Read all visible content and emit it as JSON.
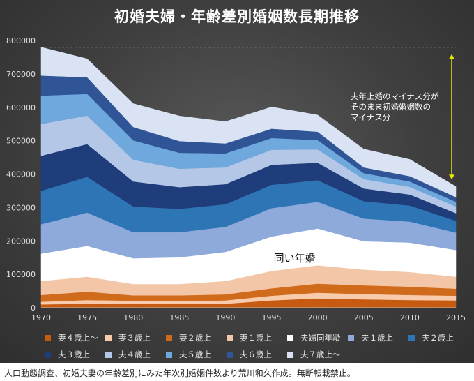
{
  "chart_data": {
    "type": "area",
    "title": "初婚夫婦・年齢差別婚姻数長期推移",
    "x": [
      1970,
      1975,
      1980,
      1985,
      1990,
      1995,
      2000,
      2005,
      2010,
      2015
    ],
    "ylim": [
      0,
      800000
    ],
    "yticks": [
      "0",
      "100000",
      "200000",
      "300000",
      "400000",
      "500000",
      "600000",
      "700000",
      "800000"
    ],
    "stacked": true,
    "grid": false,
    "legend_position": "bottom",
    "series": [
      {
        "name": "妻４歳上～",
        "color": "#c65a11",
        "values": [
          10000,
          12000,
          12000,
          11000,
          12000,
          22000,
          28000,
          25000,
          23000,
          22000
        ]
      },
      {
        "name": "妻３歳上",
        "color": "#f8cbad",
        "values": [
          8000,
          11000,
          9000,
          9000,
          10000,
          14000,
          17000,
          16000,
          15000,
          14000
        ]
      },
      {
        "name": "妻２歳上",
        "color": "#d16b1c",
        "values": [
          20000,
          25000,
          16000,
          17000,
          18000,
          22000,
          27000,
          26000,
          25000,
          21000
        ]
      },
      {
        "name": "妻１歳上",
        "color": "#f4c6a8",
        "values": [
          42000,
          45000,
          34000,
          34000,
          40000,
          52000,
          55000,
          47000,
          44000,
          36000
        ]
      },
      {
        "name": "夫婦同年齢",
        "color": "#ffffff",
        "values": [
          82000,
          92000,
          77000,
          80000,
          87000,
          103000,
          110000,
          85000,
          88000,
          80000
        ]
      },
      {
        "name": "夫１歳上",
        "color": "#8eaadb",
        "values": [
          88000,
          100000,
          78000,
          75000,
          75000,
          85000,
          80000,
          68000,
          63000,
          52000
        ]
      },
      {
        "name": "夫２歳上",
        "color": "#2e75b6",
        "values": [
          100000,
          107000,
          77000,
          70000,
          68000,
          70000,
          65000,
          52000,
          48000,
          35000
        ]
      },
      {
        "name": "夫３歳上",
        "color": "#1f3d7a",
        "values": [
          105000,
          98000,
          75000,
          65000,
          60000,
          60000,
          52000,
          38000,
          33000,
          23000
        ]
      },
      {
        "name": "夫４歳上",
        "color": "#b4c7e7",
        "values": [
          95000,
          85000,
          65000,
          55000,
          50000,
          45000,
          40000,
          28000,
          23000,
          20000
        ]
      },
      {
        "name": "夫５歳上",
        "color": "#6fa8dc",
        "values": [
          85000,
          65000,
          58000,
          48000,
          42000,
          35000,
          28000,
          18000,
          16000,
          14000
        ]
      },
      {
        "name": "夫６歳上",
        "color": "#2f5597",
        "values": [
          60000,
          50000,
          40000,
          35000,
          30000,
          28000,
          25000,
          17000,
          16000,
          14000
        ]
      },
      {
        "name": "夫７歳上～",
        "color": "#dae3f3",
        "values": [
          85000,
          55000,
          70000,
          75000,
          65000,
          65000,
          50000,
          55000,
          50000,
          32000
        ]
      }
    ],
    "annotations": {
      "inline_label": "同い年婚",
      "note_lines": [
        "夫年上婚のマイナス分が",
        "そのまま初婚婚姻数の",
        "マイナス分"
      ]
    },
    "colors": {
      "arrow": "#e6e600",
      "dashed_line": "#dddddd"
    }
  },
  "source_note": "人口動態調査、初婚夫妻の年齢差別にみた年次別婚姻件数より荒川和久作成。無断転載禁止。"
}
